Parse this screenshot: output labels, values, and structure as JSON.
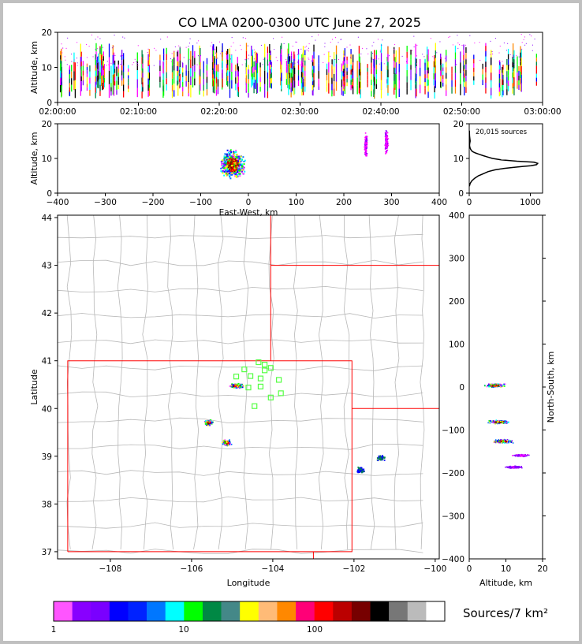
{
  "title": "CO LMA 0200-0300 UTC June 27, 2025",
  "chart_data": [
    {
      "type": "scatter",
      "panel": "altitude-time",
      "ylabel": "Altitude, km",
      "xlim": [
        "02:00:00",
        "03:00:00"
      ],
      "ylim": [
        0,
        20
      ],
      "xticks": [
        "02:00:00",
        "02:10:00",
        "02:20:00",
        "02:30:00",
        "02:40:00",
        "02:50:00",
        "03:00:00"
      ],
      "yticks": [
        "0",
        "10",
        "20"
      ]
    },
    {
      "type": "scatter",
      "panel": "altitude-eastwest",
      "xlabel": "East-West, km",
      "ylabel": "Altitude, km",
      "xlim": [
        -400,
        400
      ],
      "ylim": [
        0,
        20
      ],
      "xticks": [
        "−400",
        "−300",
        "−200",
        "−100",
        "0",
        "100",
        "200",
        "300",
        "400"
      ],
      "yticks": [
        "0",
        "10",
        "20"
      ],
      "clusters": [
        {
          "x": -35,
          "y": 8.5
        },
        {
          "x": 245,
          "y": 14
        },
        {
          "x": 288,
          "y": 15
        }
      ]
    },
    {
      "type": "line",
      "panel": "altitude-histogram",
      "annotation": "20,015 sources",
      "xlim": [
        0,
        1200
      ],
      "ylim": [
        0,
        20
      ],
      "xticks": [
        "0",
        "1000"
      ],
      "yticks": [
        "0",
        "10",
        "20"
      ],
      "x": [
        2,
        15,
        40,
        90,
        150,
        230,
        310,
        420,
        560,
        720,
        880,
        1010,
        1100,
        1120,
        1060,
        780,
        520,
        380,
        300,
        230,
        160,
        100,
        50,
        25,
        10,
        5,
        8,
        15,
        5,
        2
      ],
      "y": [
        2.0,
        2.8,
        3.5,
        4.3,
        5.0,
        5.6,
        6.2,
        6.7,
        7.1,
        7.4,
        7.7,
        7.9,
        8.2,
        8.6,
        8.9,
        9.2,
        9.6,
        10.0,
        10.4,
        10.8,
        11.2,
        11.6,
        12.0,
        12.6,
        13.2,
        13.8,
        14.3,
        15.0,
        16.5,
        18.0
      ]
    },
    {
      "type": "scatter",
      "panel": "plan-view-map",
      "xlabel": "Longitude",
      "ylabel": "Latitude",
      "xlim": [
        -109.3,
        -99.9
      ],
      "ylim": [
        36.85,
        44.05
      ],
      "xticks": [
        "−108",
        "−106",
        "−104",
        "−102",
        "−100"
      ],
      "yticks": [
        "37",
        "38",
        "39",
        "40",
        "41",
        "42",
        "43",
        "44"
      ],
      "sensors": [
        [
          -104.7,
          40.82
        ],
        [
          -104.35,
          40.97
        ],
        [
          -104.2,
          40.92
        ],
        [
          -104.05,
          40.85
        ],
        [
          -104.2,
          40.8
        ],
        [
          -104.9,
          40.67
        ],
        [
          -104.55,
          40.68
        ],
        [
          -104.3,
          40.63
        ],
        [
          -103.85,
          40.6
        ],
        [
          -104.3,
          40.46
        ],
        [
          -104.6,
          40.44
        ],
        [
          -103.8,
          40.32
        ],
        [
          -104.05,
          40.23
        ],
        [
          -104.45,
          40.05
        ]
      ],
      "clusters": [
        {
          "lon": -104.9,
          "lat": 40.49
        },
        {
          "lon": -105.6,
          "lat": 39.72
        },
        {
          "lon": -105.15,
          "lat": 39.3
        },
        {
          "lon": -101.35,
          "lat": 38.98
        },
        {
          "lon": -101.85,
          "lat": 38.72
        }
      ]
    },
    {
      "type": "scatter",
      "panel": "northsouth-altitude",
      "xlabel": "Altitude, km",
      "ylabel": "North-South, km",
      "xlim": [
        0,
        20
      ],
      "ylim": [
        -400,
        400
      ],
      "xticks": [
        "0",
        "10",
        "20"
      ],
      "yticks": [
        "−400",
        "−300",
        "−200",
        "−100",
        "0",
        "100",
        "200",
        "300",
        "400"
      ],
      "clusters": [
        {
          "x": 7,
          "y": 5
        },
        {
          "x": 8,
          "y": -80
        },
        {
          "x": 9,
          "y": -125
        },
        {
          "x": 14,
          "y": -158
        },
        {
          "x": 12,
          "y": -185
        }
      ]
    },
    {
      "type": "colorbar",
      "label": "Sources/7 km²",
      "scale": "log",
      "ticks": [
        "1",
        "10",
        "100"
      ],
      "colors": [
        "#ff55ff",
        "#8800ff",
        "#7a00ff",
        "#0000ff",
        "#0022ff",
        "#0077ff",
        "#00ffff",
        "#00ff00",
        "#008844",
        "#448888",
        "#ffff00",
        "#ffbb77",
        "#ff8800",
        "#ff0077",
        "#ff0000",
        "#bb0000",
        "#770000",
        "#000000",
        "#777777",
        "#bbbbbb",
        "#ffffff"
      ]
    }
  ]
}
